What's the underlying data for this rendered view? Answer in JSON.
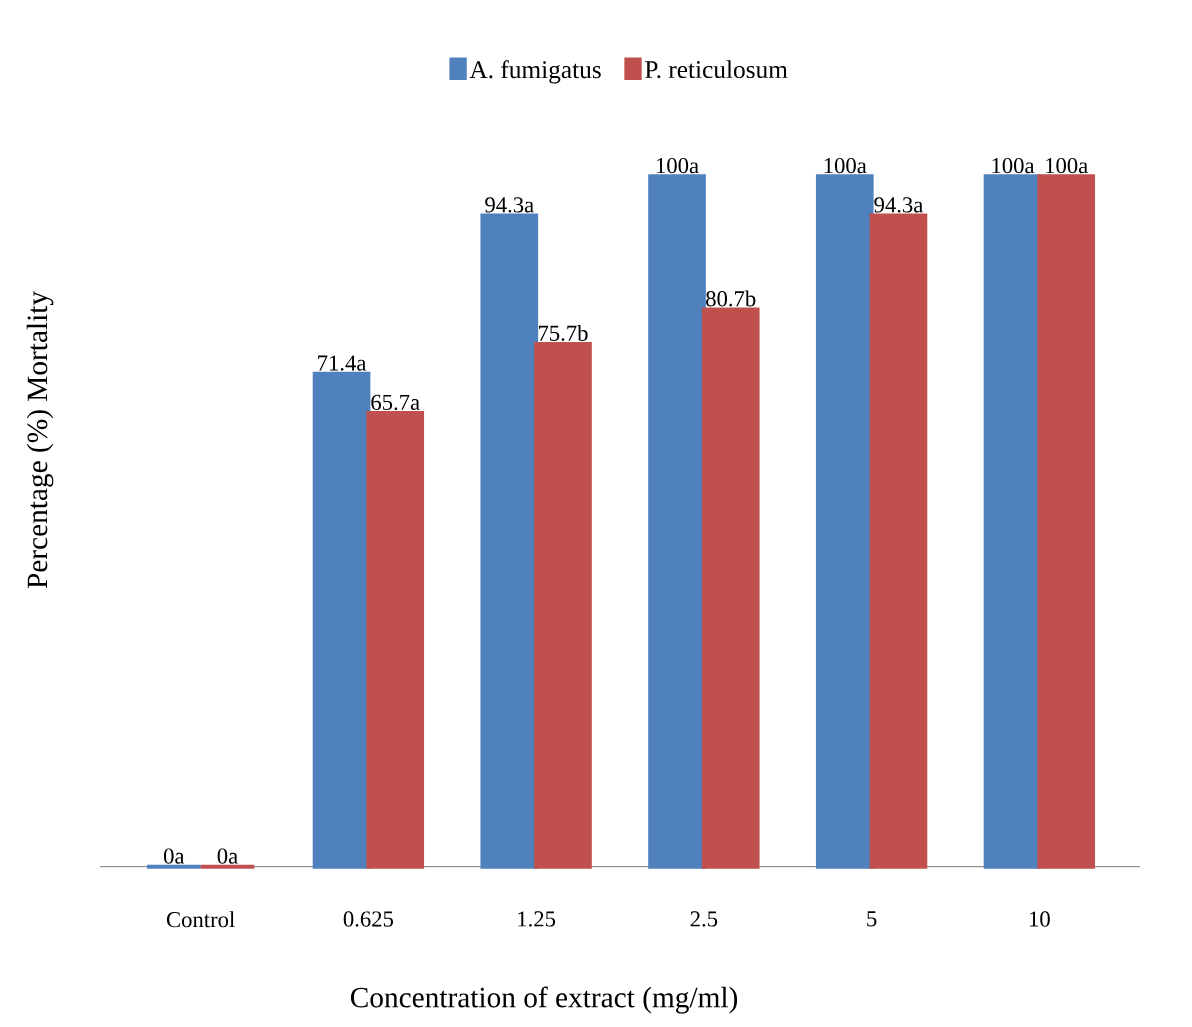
{
  "chart_data": {
    "type": "bar",
    "xlabel": "Concentration  of extract (mg/ml)",
    "ylabel": "Percentage (%) Mortality",
    "categories": [
      "Control",
      "0.625",
      "1.25",
      "2.5",
      "5",
      "10"
    ],
    "series": [
      {
        "name": "A. fumigatus",
        "color": "#4f81bd",
        "values": [
          0,
          71.4,
          94.3,
          100,
          100,
          100
        ],
        "value_labels": [
          "0a",
          "71.4a",
          "94.3a",
          "100a",
          "100a",
          "100a"
        ]
      },
      {
        "name": "P. reticulosum",
        "color": "#c0504d",
        "values": [
          0,
          65.7,
          75.7,
          80.7,
          94.3,
          100
        ],
        "value_labels": [
          "0a",
          "65.7a",
          "75.7b",
          "80.7b",
          "94.3a",
          "100a"
        ]
      }
    ],
    "legend": "top"
  }
}
